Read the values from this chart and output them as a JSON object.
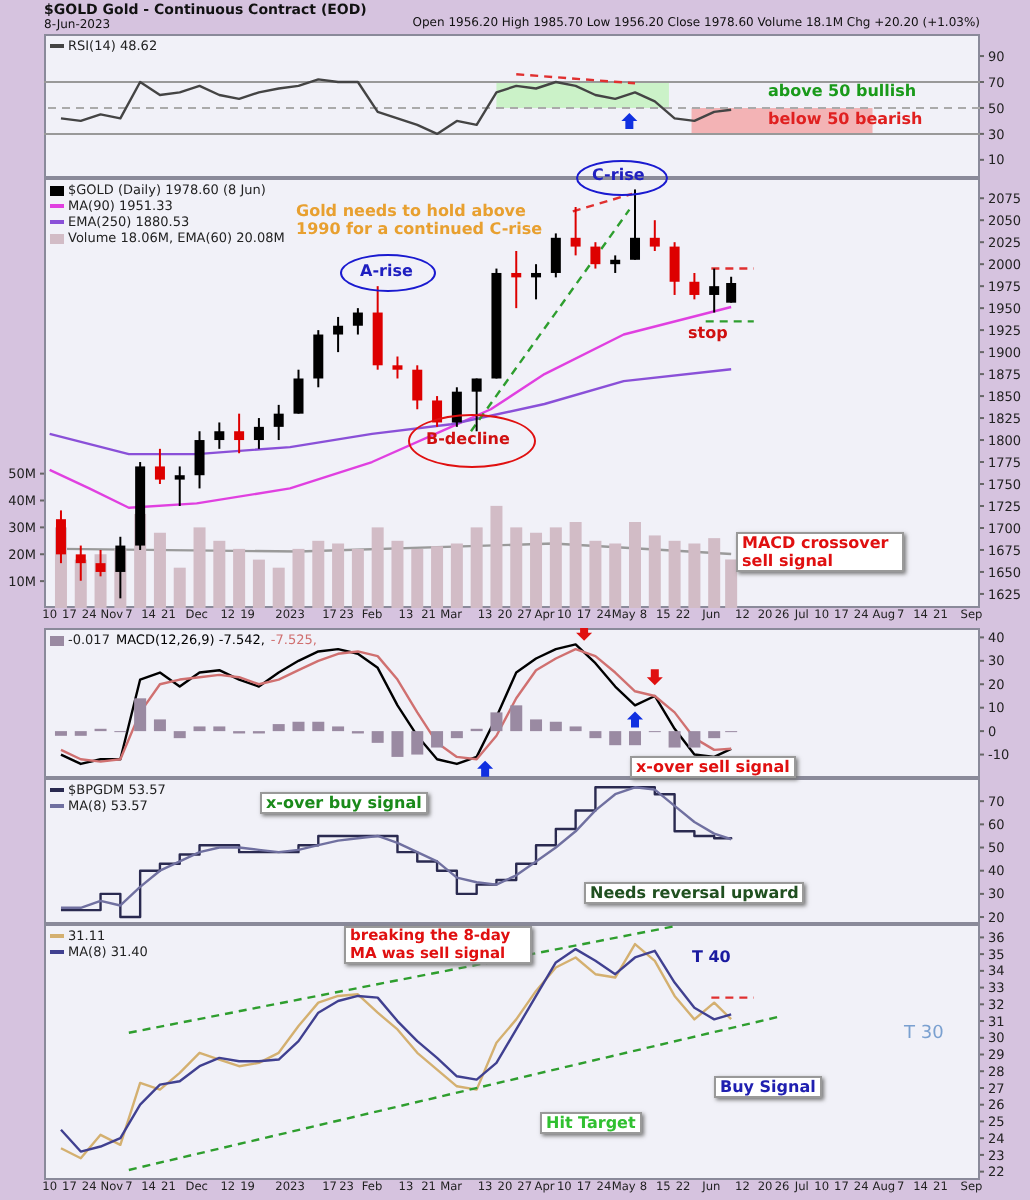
{
  "chart_data": [
    {
      "type": "line",
      "title": "$GOLD Gold - Continuous Contract (EOD)",
      "subtitle": "8-Jun-2023",
      "x": [
        "2022-10-14",
        "2022-10-21",
        "2022-10-28",
        "2022-11-04",
        "2022-11-11",
        "2022-11-18",
        "2022-11-25",
        "2022-12-02",
        "2022-12-09",
        "2022-12-16",
        "2022-12-23",
        "2022-12-30",
        "2023-01-06",
        "2023-01-13",
        "2023-01-20",
        "2023-01-27",
        "2023-02-03",
        "2023-02-10",
        "2023-02-17",
        "2023-02-24",
        "2023-03-03",
        "2023-03-10",
        "2023-03-17",
        "2023-03-24",
        "2023-03-31",
        "2023-04-07",
        "2023-04-14",
        "2023-04-21",
        "2023-04-28",
        "2023-05-05",
        "2023-05-12",
        "2023-05-19",
        "2023-05-26",
        "2023-06-02",
        "2023-06-08"
      ],
      "xlim": [
        "2022-10-08",
        "2023-09-04"
      ],
      "ylim": [
        -4,
        107
      ],
      "yticks": [
        10,
        30,
        50,
        70,
        90
      ],
      "tick_labels": "y",
      "legend": "top left",
      "series": [
        {
          "name": "RSI(14) 48.62",
          "color": "#444444",
          "values": [
            42,
            40,
            45,
            42,
            70,
            60,
            62,
            67,
            60,
            57,
            62,
            65,
            67,
            72,
            70,
            70,
            47,
            42,
            37,
            30,
            40,
            37,
            62,
            67,
            65,
            70,
            67,
            60,
            57,
            62,
            55,
            42,
            40,
            47,
            48.62
          ]
        },
        {
          "color": "#e03030",
          "line_style": "dashed",
          "x": [
            "2023-03-24",
            "2023-05-05"
          ],
          "values": [
            76,
            69
          ]
        }
      ],
      "ref_lines": [
        {
          "axis": "y",
          "value": 70,
          "color": "#999999"
        },
        {
          "axis": "y",
          "value": 30,
          "color": "#999999"
        },
        {
          "axis": "y",
          "value": 50,
          "color": "#aaaaaa",
          "line_style": "dashed"
        }
      ],
      "bands": [
        {
          "axis": "x",
          "from": "2023-03-17",
          "to": "2023-05-17",
          "color": "#c2f2bc"
        },
        {
          "axis": "x",
          "from": "2023-05-25",
          "to": "2023-07-28",
          "color": "#f4a4a4"
        }
      ],
      "annotations": [
        "Open 1956.20 High 1985.70 Low 1956.20 Close 1978.60 Volume 18.1M Chg +20.20 (+1.03%)",
        "above 50 bullish",
        "below 50 bearish"
      ]
    },
    {
      "type": "candlestick",
      "x": [
        "2022-10-14",
        "2022-10-21",
        "2022-10-28",
        "2022-11-04",
        "2022-11-11",
        "2022-11-18",
        "2022-11-25",
        "2022-12-02",
        "2022-12-09",
        "2022-12-16",
        "2022-12-23",
        "2022-12-30",
        "2023-01-06",
        "2023-01-13",
        "2023-01-20",
        "2023-01-27",
        "2023-02-03",
        "2023-02-10",
        "2023-02-17",
        "2023-02-24",
        "2023-03-03",
        "2023-03-10",
        "2023-03-17",
        "2023-03-24",
        "2023-03-31",
        "2023-04-07",
        "2023-04-14",
        "2023-04-21",
        "2023-04-28",
        "2023-05-05",
        "2023-05-12",
        "2023-05-19",
        "2023-05-26",
        "2023-06-02",
        "2023-06-08"
      ],
      "xlim": [
        "2022-10-08",
        "2023-09-04"
      ],
      "xticks": [
        {
          "value": "2022-10-10",
          "label": "10"
        },
        {
          "value": "2022-10-17",
          "label": "17"
        },
        {
          "value": "2022-10-24",
          "label": "24"
        },
        {
          "value": "2022-11-01",
          "label": "Nov"
        },
        {
          "value": "2022-11-07",
          "label": "7"
        },
        {
          "value": "2022-11-14",
          "label": "14"
        },
        {
          "value": "2022-11-21",
          "label": "21"
        },
        {
          "value": "2022-12-01",
          "label": "Dec"
        },
        {
          "value": "2022-12-12",
          "label": "12"
        },
        {
          "value": "2022-12-19",
          "label": "19"
        },
        {
          "value": "2023-01-03",
          "label": "2023"
        },
        {
          "value": "2023-01-17",
          "label": "17"
        },
        {
          "value": "2023-01-23",
          "label": "23"
        },
        {
          "value": "2023-02-01",
          "label": "Feb"
        },
        {
          "value": "2023-02-13",
          "label": "13"
        },
        {
          "value": "2023-02-21",
          "label": "21"
        },
        {
          "value": "2023-03-01",
          "label": "Mar"
        },
        {
          "value": "2023-03-13",
          "label": "13"
        },
        {
          "value": "2023-03-20",
          "label": "20"
        },
        {
          "value": "2023-03-27",
          "label": "27"
        },
        {
          "value": "2023-04-03",
          "label": "Apr"
        },
        {
          "value": "2023-04-10",
          "label": "10"
        },
        {
          "value": "2023-04-17",
          "label": "17"
        },
        {
          "value": "2023-04-24",
          "label": "24"
        },
        {
          "value": "2023-05-01",
          "label": "May"
        },
        {
          "value": "2023-05-08",
          "label": "8"
        },
        {
          "value": "2023-05-15",
          "label": "15"
        },
        {
          "value": "2023-05-22",
          "label": "22"
        },
        {
          "value": "2023-06-01",
          "label": "Jun"
        },
        {
          "value": "2023-06-12",
          "label": "12"
        },
        {
          "value": "2023-06-20",
          "label": "20"
        },
        {
          "value": "2023-06-26",
          "label": "26"
        },
        {
          "value": "2023-07-03",
          "label": "Jul"
        },
        {
          "value": "2023-07-10",
          "label": "10"
        },
        {
          "value": "2023-07-17",
          "label": "17"
        },
        {
          "value": "2023-07-24",
          "label": "24"
        },
        {
          "value": "2023-08-01",
          "label": "Aug"
        },
        {
          "value": "2023-08-07",
          "label": "7"
        },
        {
          "value": "2023-08-14",
          "label": "14"
        },
        {
          "value": "2023-08-21",
          "label": "21"
        },
        {
          "value": "2023-09-01",
          "label": "Sep"
        }
      ],
      "ylim": [
        1609,
        2098
      ],
      "yticks": [
        1625,
        1650,
        1675,
        1700,
        1725,
        1750,
        1775,
        1800,
        1825,
        1850,
        1875,
        1900,
        1925,
        1950,
        1975,
        2000,
        2025,
        2050,
        2075
      ],
      "y2lim": [
        0,
        160
      ],
      "y2ticks": [
        {
          "value": 10,
          "label": "10M"
        },
        {
          "value": 20,
          "label": "20M"
        },
        {
          "value": 30,
          "label": "30M"
        },
        {
          "value": 40,
          "label": "40M"
        },
        {
          "value": 50,
          "label": "50M"
        }
      ],
      "legend": "top left",
      "series": [
        {
          "name": "$GOLD (Daily) 1978.60 (8 Jun)",
          "color": "#000000",
          "ohlc": [
            [
              1710,
              1720,
              1660,
              1670
            ],
            [
              1670,
              1680,
              1640,
              1660
            ],
            [
              1660,
              1675,
              1645,
              1650
            ],
            [
              1650,
              1690,
              1620,
              1680
            ],
            [
              1680,
              1775,
              1675,
              1770
            ],
            [
              1770,
              1790,
              1750,
              1755
            ],
            [
              1755,
              1770,
              1725,
              1760
            ],
            [
              1760,
              1810,
              1745,
              1800
            ],
            [
              1800,
              1820,
              1790,
              1810
            ],
            [
              1810,
              1830,
              1785,
              1800
            ],
            [
              1800,
              1825,
              1790,
              1815
            ],
            [
              1815,
              1840,
              1800,
              1830
            ],
            [
              1830,
              1880,
              1830,
              1870
            ],
            [
              1870,
              1925,
              1860,
              1920
            ],
            [
              1920,
              1940,
              1900,
              1930
            ],
            [
              1930,
              1950,
              1920,
              1945
            ],
            [
              1945,
              1975,
              1880,
              1885
            ],
            [
              1885,
              1895,
              1870,
              1880
            ],
            [
              1880,
              1885,
              1835,
              1845
            ],
            [
              1845,
              1850,
              1815,
              1820
            ],
            [
              1820,
              1860,
              1815,
              1855
            ],
            [
              1855,
              1870,
              1810,
              1870
            ],
            [
              1870,
              1995,
              1870,
              1990
            ],
            [
              1990,
              2015,
              1950,
              1985
            ],
            [
              1985,
              2000,
              1960,
              1990
            ],
            [
              1990,
              2035,
              1985,
              2030
            ],
            [
              2030,
              2065,
              2010,
              2020
            ],
            [
              2020,
              2025,
              1995,
              2000
            ],
            [
              2000,
              2010,
              1990,
              2005
            ],
            [
              2005,
              2085,
              2005,
              2030
            ],
            [
              2030,
              2050,
              2015,
              2020
            ],
            [
              2020,
              2025,
              1965,
              1980
            ],
            [
              1980,
              1990,
              1960,
              1965
            ],
            [
              1965,
              1995,
              1945,
              1975
            ],
            [
              1956.2,
              1985.7,
              1956.2,
              1978.6
            ]
          ],
          "colors": [
            "#dd0000",
            "#dd0000",
            "#dd0000",
            "#000000",
            "#000000",
            "#dd0000",
            "#000000",
            "#000000",
            "#000000",
            "#dd0000",
            "#000000",
            "#000000",
            "#000000",
            "#000000",
            "#000000",
            "#000000",
            "#dd0000",
            "#dd0000",
            "#dd0000",
            "#dd0000",
            "#000000",
            "#000000",
            "#000000",
            "#dd0000",
            "#000000",
            "#000000",
            "#dd0000",
            "#dd0000",
            "#000000",
            "#000000",
            "#dd0000",
            "#dd0000",
            "#dd0000",
            "#000000",
            "#000000"
          ]
        },
        {
          "name": "MA(90) 1951.33",
          "type": "line",
          "color": "#e040e0",
          "x": [
            "2022-10-10",
            "2022-10-24",
            "2022-11-07",
            "2022-12-01",
            "2023-01-03",
            "2023-02-01",
            "2023-03-01",
            "2023-03-15",
            "2023-04-03",
            "2023-05-01",
            "2023-06-08"
          ],
          "values": [
            1766,
            1745,
            1723,
            1728,
            1745,
            1775,
            1815,
            1835,
            1875,
            1920,
            1951.33
          ]
        },
        {
          "name": "EMA(250) 1880.53",
          "type": "line",
          "color": "#8a50d8",
          "x": [
            "2022-10-10",
            "2022-11-07",
            "2022-12-01",
            "2023-01-03",
            "2023-02-01",
            "2023-03-01",
            "2023-04-03",
            "2023-05-01",
            "2023-06-08"
          ],
          "values": [
            1807,
            1784,
            1784,
            1792,
            1807,
            1818,
            1841,
            1867,
            1880.53
          ]
        },
        {
          "name": "Volume 18.06M, EMA(60) 20.08M",
          "type": "bar",
          "axis": "y2",
          "color": "#d2bcc6",
          "values": [
            30,
            18,
            20,
            22,
            35,
            28,
            15,
            30,
            25,
            22,
            18,
            15,
            22,
            25,
            24,
            22,
            30,
            25,
            22,
            23,
            24,
            30,
            38,
            30,
            28,
            30,
            32,
            25,
            24,
            32,
            27,
            25,
            24,
            26,
            18.06
          ]
        },
        {
          "type": "line",
          "axis": "y2",
          "color": "#9a9a9a",
          "x": [
            "2022-10-14",
            "2023-01-06",
            "2023-04-06",
            "2023-06-08"
          ],
          "values": [
            22,
            21,
            24,
            20.08
          ]
        },
        {
          "type": "line",
          "color": "#2e9e2e",
          "line_style": "dashed",
          "x": [
            "2023-03-08",
            "2023-05-03"
          ],
          "values": [
            1810,
            2062
          ]
        },
        {
          "type": "line",
          "color": "#e03030",
          "line_style": "dashed",
          "x": [
            "2023-04-13",
            "2023-05-04"
          ],
          "values": [
            2060,
            2080
          ]
        },
        {
          "type": "line",
          "color": "#e03030",
          "line_style": "dashed",
          "x": [
            "2023-06-01",
            "2023-06-16"
          ],
          "values": [
            1995,
            1995
          ]
        },
        {
          "type": "line",
          "color": "#2e9e2e",
          "line_style": "dashed",
          "x": [
            "2023-05-30",
            "2023-06-16"
          ],
          "values": [
            1935,
            1935
          ]
        }
      ],
      "annotations": [
        "Gold needs to hold above 1990 for a continued C-rise",
        "A-rise",
        "C-rise",
        "B-decline",
        "stop",
        "MACD crossover sell signal"
      ]
    },
    {
      "type": "line",
      "x": [
        "2022-10-14",
        "2022-10-21",
        "2022-10-28",
        "2022-11-04",
        "2022-11-11",
        "2022-11-18",
        "2022-11-25",
        "2022-12-02",
        "2022-12-09",
        "2022-12-16",
        "2022-12-23",
        "2022-12-30",
        "2023-01-06",
        "2023-01-13",
        "2023-01-20",
        "2023-01-27",
        "2023-02-03",
        "2023-02-10",
        "2023-02-17",
        "2023-02-24",
        "2023-03-03",
        "2023-03-10",
        "2023-03-17",
        "2023-03-24",
        "2023-03-31",
        "2023-04-07",
        "2023-04-14",
        "2023-04-21",
        "2023-04-28",
        "2023-05-05",
        "2023-05-12",
        "2023-05-19",
        "2023-05-26",
        "2023-06-02",
        "2023-06-08"
      ],
      "xlim": [
        "2022-10-08",
        "2023-09-04"
      ],
      "ylim": [
        -20,
        44
      ],
      "yticks": [
        -10,
        0,
        10,
        20,
        30,
        40
      ],
      "tick_labels": "y",
      "legend": "top left",
      "series": [
        {
          "name": "-0.017",
          "type": "bar",
          "color": "#9a8aa2",
          "values": [
            -2,
            -2,
            1,
            0,
            14,
            5,
            -3,
            2,
            2,
            -1,
            -1,
            3,
            4,
            4,
            2,
            -1,
            -5,
            -11,
            -10,
            -7,
            -3,
            1,
            8,
            11,
            5,
            4,
            2,
            -3,
            -6,
            -6,
            0,
            -7,
            -7,
            -3,
            -0.017
          ]
        },
        {
          "name": "MACD(12,26,9) -7.542,",
          "color": "#000000",
          "values": [
            -10,
            -14,
            -12,
            -12,
            22,
            25,
            19,
            25,
            26,
            22,
            19,
            25,
            30,
            34,
            35,
            33,
            27,
            11,
            -2,
            -12,
            -14,
            -11,
            6,
            25,
            31,
            35,
            37,
            29,
            19,
            11,
            15,
            1,
            -10,
            -11,
            -7.542
          ]
        },
        {
          "name": "-7.525,",
          "color": "#d07070",
          "values": [
            -8,
            -12,
            -13,
            -12,
            8,
            20,
            22,
            23,
            24,
            23,
            20,
            22,
            26,
            30,
            33,
            34,
            32,
            22,
            8,
            -5,
            -11,
            -12,
            -2,
            14,
            26,
            31,
            35,
            32,
            25,
            17,
            15,
            8,
            -3,
            -8,
            -7.525
          ]
        }
      ],
      "annotations": [
        "x-over sell signal"
      ]
    },
    {
      "type": "step",
      "x": [
        "2022-10-14",
        "2022-10-21",
        "2022-10-28",
        "2022-11-04",
        "2022-11-11",
        "2022-11-18",
        "2022-11-25",
        "2022-12-02",
        "2022-12-09",
        "2022-12-16",
        "2022-12-23",
        "2022-12-30",
        "2023-01-06",
        "2023-01-13",
        "2023-01-20",
        "2023-01-27",
        "2023-02-03",
        "2023-02-10",
        "2023-02-17",
        "2023-02-24",
        "2023-03-03",
        "2023-03-10",
        "2023-03-17",
        "2023-03-24",
        "2023-03-31",
        "2023-04-07",
        "2023-04-14",
        "2023-04-21",
        "2023-04-28",
        "2023-05-05",
        "2023-05-12",
        "2023-05-19",
        "2023-05-26",
        "2023-06-02",
        "2023-06-08"
      ],
      "xlim": [
        "2022-10-08",
        "2023-09-04"
      ],
      "ylim": [
        17,
        80
      ],
      "yticks": [
        20,
        30,
        40,
        50,
        60,
        70
      ],
      "tick_labels": "y",
      "legend": "top left",
      "series": [
        {
          "name": "$BPGDM 53.57",
          "color": "#2a2a50",
          "values": [
            23,
            23,
            30,
            20,
            40,
            43,
            47,
            51,
            51,
            48,
            48,
            48,
            51,
            55,
            55,
            55,
            55,
            48,
            44,
            40,
            30,
            34,
            36,
            43,
            51,
            58,
            66,
            76,
            76,
            76,
            73,
            57,
            55,
            54,
            53.57
          ]
        },
        {
          "name": "MA(8) 53.57",
          "type": "line",
          "color": "#7070a0",
          "values": [
            24,
            24,
            27,
            25,
            33,
            40,
            44,
            48,
            50,
            50,
            49,
            48,
            49,
            51,
            53,
            54,
            55,
            52,
            48,
            44,
            37,
            35,
            34,
            38,
            44,
            50,
            57,
            66,
            73,
            76,
            75,
            68,
            61,
            56,
            53.57
          ]
        }
      ],
      "annotations": [
        "x-over buy signal",
        "Needs reversal upward"
      ]
    },
    {
      "type": "line",
      "x": [
        "2022-10-14",
        "2022-10-21",
        "2022-10-28",
        "2022-11-04",
        "2022-11-11",
        "2022-11-18",
        "2022-11-25",
        "2022-12-02",
        "2022-12-09",
        "2022-12-16",
        "2022-12-23",
        "2022-12-30",
        "2023-01-06",
        "2023-01-13",
        "2023-01-20",
        "2023-01-27",
        "2023-02-03",
        "2023-02-10",
        "2023-02-17",
        "2023-02-24",
        "2023-03-03",
        "2023-03-10",
        "2023-03-17",
        "2023-03-24",
        "2023-03-31",
        "2023-04-07",
        "2023-04-14",
        "2023-04-21",
        "2023-04-28",
        "2023-05-05",
        "2023-05-12",
        "2023-05-19",
        "2023-05-26",
        "2023-06-02",
        "2023-06-08"
      ],
      "xlim": [
        "2022-10-08",
        "2023-09-04"
      ],
      "xticks": [
        {
          "value": "2022-10-10",
          "label": "10"
        },
        {
          "value": "2022-10-17",
          "label": "17"
        },
        {
          "value": "2022-10-24",
          "label": "24"
        },
        {
          "value": "2022-11-01",
          "label": "Nov"
        },
        {
          "value": "2022-11-07",
          "label": "7"
        },
        {
          "value": "2022-11-14",
          "label": "14"
        },
        {
          "value": "2022-11-21",
          "label": "21"
        },
        {
          "value": "2022-12-01",
          "label": "Dec"
        },
        {
          "value": "2022-12-12",
          "label": "12"
        },
        {
          "value": "2022-12-19",
          "label": "19"
        },
        {
          "value": "2023-01-03",
          "label": "2023"
        },
        {
          "value": "2023-01-17",
          "label": "17"
        },
        {
          "value": "2023-01-23",
          "label": "23"
        },
        {
          "value": "2023-02-01",
          "label": "Feb"
        },
        {
          "value": "2023-02-13",
          "label": "13"
        },
        {
          "value": "2023-02-21",
          "label": "21"
        },
        {
          "value": "2023-03-01",
          "label": "Mar"
        },
        {
          "value": "2023-03-13",
          "label": "13"
        },
        {
          "value": "2023-03-20",
          "label": "20"
        },
        {
          "value": "2023-03-27",
          "label": "27"
        },
        {
          "value": "2023-04-03",
          "label": "Apr"
        },
        {
          "value": "2023-04-10",
          "label": "10"
        },
        {
          "value": "2023-04-17",
          "label": "17"
        },
        {
          "value": "2023-04-24",
          "label": "24"
        },
        {
          "value": "2023-05-01",
          "label": "May"
        },
        {
          "value": "2023-05-08",
          "label": "8"
        },
        {
          "value": "2023-05-15",
          "label": "15"
        },
        {
          "value": "2023-05-22",
          "label": "22"
        },
        {
          "value": "2023-06-01",
          "label": "Jun"
        },
        {
          "value": "2023-06-12",
          "label": "12"
        },
        {
          "value": "2023-06-20",
          "label": "20"
        },
        {
          "value": "2023-06-26",
          "label": "26"
        },
        {
          "value": "2023-07-03",
          "label": "Jul"
        },
        {
          "value": "2023-07-10",
          "label": "10"
        },
        {
          "value": "2023-07-17",
          "label": "17"
        },
        {
          "value": "2023-07-24",
          "label": "24"
        },
        {
          "value": "2023-08-01",
          "label": "Aug"
        },
        {
          "value": "2023-08-07",
          "label": "7"
        },
        {
          "value": "2023-08-14",
          "label": "14"
        },
        {
          "value": "2023-08-21",
          "label": "21"
        },
        {
          "value": "2023-09-01",
          "label": "Sep"
        }
      ],
      "ylim": [
        21.5,
        36.8
      ],
      "yticks": [
        22,
        23,
        24,
        25,
        26,
        27,
        28,
        29,
        30,
        31,
        32,
        33,
        34,
        35,
        36
      ],
      "legend": "top left",
      "series": [
        {
          "name": "31.11",
          "color": "#d4b070",
          "values": [
            23.4,
            22.8,
            24.2,
            23.6,
            27.3,
            26.9,
            27.9,
            29.1,
            28.7,
            28.3,
            28.5,
            29.1,
            30.7,
            32.1,
            32.5,
            32.6,
            31.5,
            30.5,
            29.1,
            28.1,
            27.1,
            26.9,
            29.7,
            31.1,
            32.8,
            34.2,
            34.8,
            33.8,
            33.6,
            35.6,
            34.6,
            32.5,
            31.1,
            32.1,
            31.11
          ]
        },
        {
          "name": "MA(8) 31.40",
          "color": "#404090",
          "values": [
            24.5,
            23.2,
            23.5,
            24,
            26,
            27.2,
            27.4,
            28.3,
            28.8,
            28.6,
            28.6,
            28.7,
            29.8,
            31.5,
            32.2,
            32.5,
            32.4,
            31,
            29.8,
            28.8,
            27.7,
            27.5,
            28.5,
            30.5,
            32.5,
            34.5,
            35.3,
            34.6,
            33.8,
            34.8,
            35.2,
            33.3,
            31.8,
            31.1,
            31.4
          ]
        },
        {
          "color": "#2e9e2e",
          "line_style": "dashed",
          "x": [
            "2022-11-07",
            "2023-05-20"
          ],
          "values": [
            30.3,
            36.7
          ]
        },
        {
          "color": "#2e9e2e",
          "line_style": "dashed",
          "x": [
            "2022-11-07",
            "2023-06-26"
          ],
          "values": [
            22.1,
            31.3
          ]
        },
        {
          "color": "#e03030",
          "line_style": "dashed",
          "x": [
            "2023-06-01",
            "2023-06-16"
          ],
          "values": [
            32.4,
            32.4
          ]
        }
      ],
      "annotations": [
        "breaking the 8-day MA was sell signal",
        "T 40",
        "T 30",
        "Buy Signal",
        "Hit Target"
      ]
    }
  ]
}
